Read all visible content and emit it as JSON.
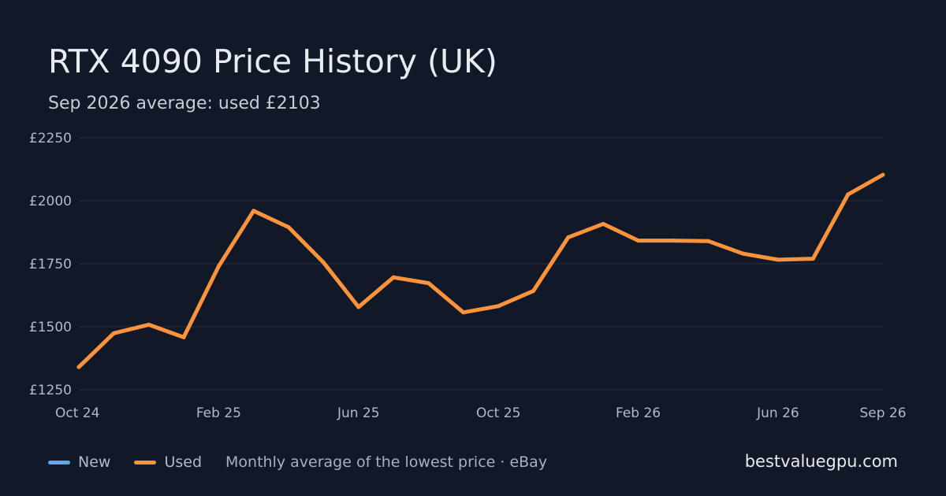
{
  "header": {
    "title": "RTX 4090 Price History (UK)",
    "subtitle": "Sep 2026 average: used £2103"
  },
  "legend": {
    "items": [
      {
        "label": "New",
        "color": "#60a5fa"
      },
      {
        "label": "Used",
        "color": "#fb923c"
      }
    ],
    "note": "Monthly average of the lowest price · eBay"
  },
  "brand": "bestvaluegpu.com",
  "colors": {
    "background": "#111827",
    "grid": "#273041",
    "axis_text": "#b3bac6",
    "used_line": "#fb923c",
    "new_line": "#60a5fa"
  },
  "chart_data": {
    "type": "line",
    "title": "RTX 4090 Price History (UK)",
    "subtitle": "Sep 2026 average: used £2103",
    "x": [
      "2024-10",
      "2024-11",
      "2024-12",
      "2025-01",
      "2025-02",
      "2025-03",
      "2025-04",
      "2025-05",
      "2025-06",
      "2025-07",
      "2025-08",
      "2025-09",
      "2025-10",
      "2025-11",
      "2025-12",
      "2026-01",
      "2026-02",
      "2026-03",
      "2026-04",
      "2026-05",
      "2026-06",
      "2026-07",
      "2026-08",
      "2026-09"
    ],
    "x_ticks": [
      {
        "x": "2024-10",
        "label": "Oct 24"
      },
      {
        "x": "2025-02",
        "label": "Feb 25"
      },
      {
        "x": "2025-06",
        "label": "Jun 25"
      },
      {
        "x": "2025-10",
        "label": "Oct 25"
      },
      {
        "x": "2026-02",
        "label": "Feb 26"
      },
      {
        "x": "2026-06",
        "label": "Jun 26"
      },
      {
        "x": "2026-09",
        "label": "Sep 26"
      }
    ],
    "y_ticks": [
      {
        "value": 1250,
        "label": "£1250"
      },
      {
        "value": 1500,
        "label": "£1500"
      },
      {
        "value": 1750,
        "label": "£1750"
      },
      {
        "value": 2000,
        "label": "£2000"
      },
      {
        "value": 2250,
        "label": "£2250"
      }
    ],
    "ylim": [
      1250,
      2250
    ],
    "grid": true,
    "legend_position": "bottom-left",
    "series": [
      {
        "name": "Used",
        "color": "#fb923c",
        "values": [
          1340,
          1474,
          1508,
          1458,
          1740,
          1960,
          1895,
          1755,
          1578,
          1696,
          1673,
          1557,
          1582,
          1642,
          1855,
          1908,
          1842,
          1842,
          1840,
          1790,
          1766,
          1770,
          2025,
          2103
        ]
      }
    ]
  }
}
